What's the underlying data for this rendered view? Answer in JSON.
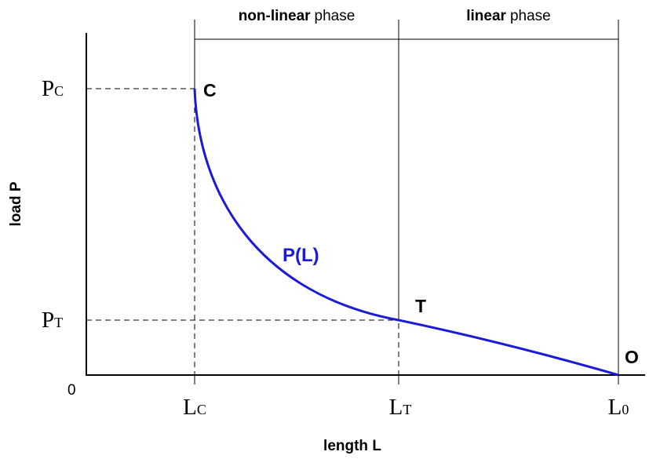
{
  "phases": [
    {
      "emphasis": "non-linear",
      "rest": "phase"
    },
    {
      "emphasis": "linear",
      "rest": "phase"
    }
  ],
  "y_axis": {
    "label": "load P",
    "origin": "0",
    "ticks": [
      {
        "symbol": "P",
        "subscript": "C"
      },
      {
        "symbol": "P",
        "subscript": "T"
      }
    ]
  },
  "x_axis": {
    "label": "length L",
    "ticks": [
      {
        "symbol": "L",
        "subscript": "C"
      },
      {
        "symbol": "L",
        "subscript": "T"
      },
      {
        "symbol": "L",
        "subscript": "0"
      }
    ]
  },
  "points": [
    "C",
    "T",
    "O"
  ],
  "curve_label": "P(L)"
}
